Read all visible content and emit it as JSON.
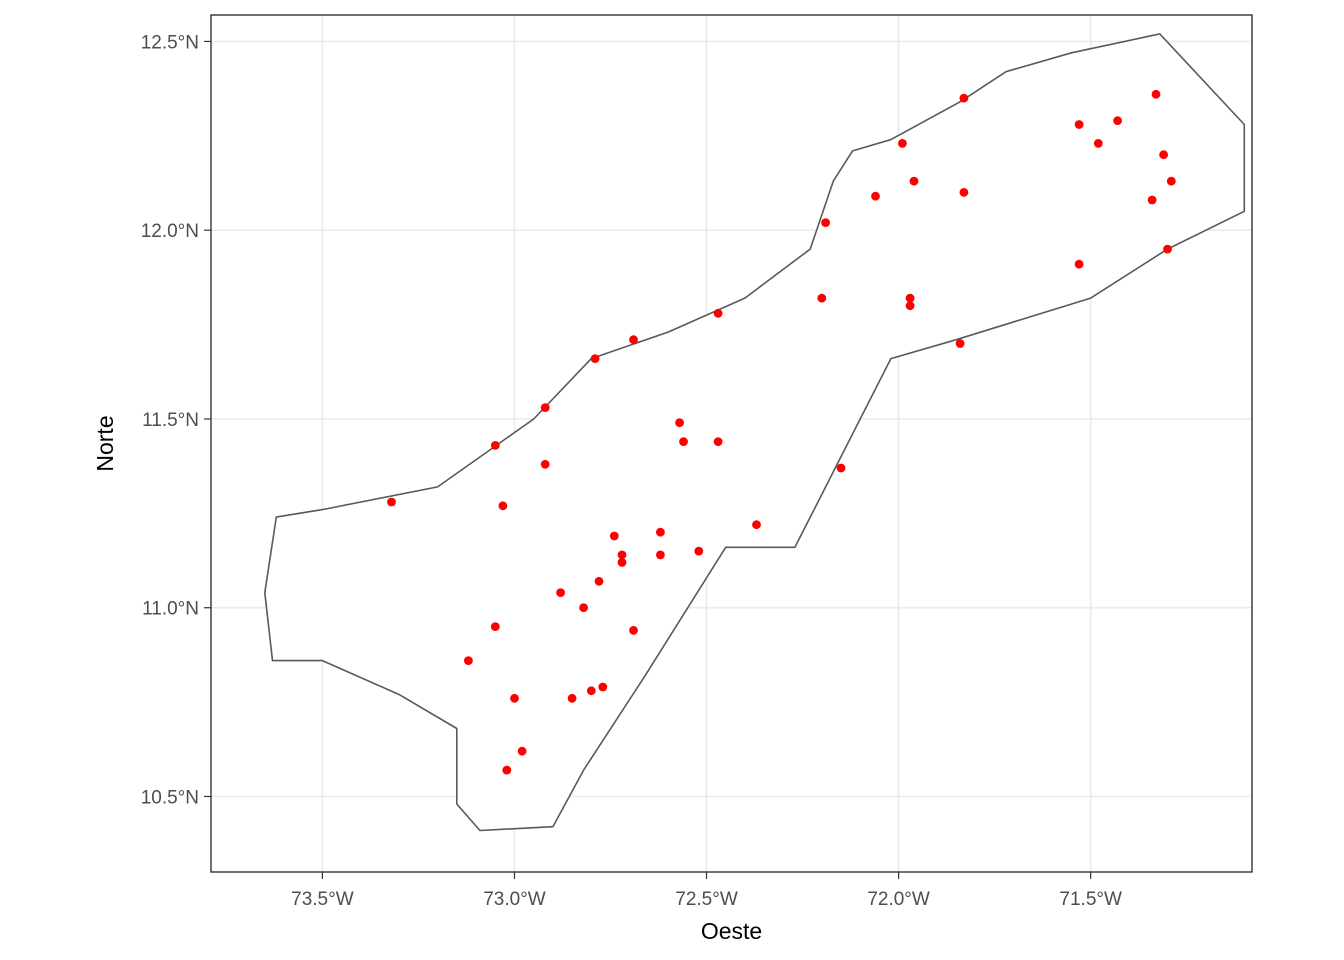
{
  "chart_data": {
    "type": "scatter",
    "kind": "map",
    "xlabel": "Oeste",
    "ylabel": "Norte",
    "x_ticks": [
      -73.5,
      -73.0,
      -72.5,
      -72.0,
      -71.5
    ],
    "x_tick_labels": [
      "73.5°W",
      "73.0°W",
      "72.5°W",
      "72.0°W",
      "71.5°W"
    ],
    "y_ticks": [
      10.5,
      11.0,
      11.5,
      12.0,
      12.5
    ],
    "y_tick_labels": [
      "10.5°N",
      "11.0°N",
      "11.5°N",
      "12.0°N",
      "12.5°N"
    ],
    "xlim": [
      -73.79,
      -71.08
    ],
    "ylim": [
      10.3,
      12.57
    ],
    "grid": true,
    "point_color": "#ff0000",
    "outline_color": "#595959",
    "outline": [
      [
        -71.32,
        12.52
      ],
      [
        -71.1,
        12.28
      ],
      [
        -71.1,
        12.05
      ],
      [
        -71.3,
        11.95
      ],
      [
        -71.5,
        11.82
      ],
      [
        -71.85,
        11.71
      ],
      [
        -72.02,
        11.66
      ],
      [
        -72.27,
        11.16
      ],
      [
        -72.45,
        11.16
      ],
      [
        -72.66,
        10.82
      ],
      [
        -72.82,
        10.57
      ],
      [
        -72.9,
        10.42
      ],
      [
        -73.09,
        10.41
      ],
      [
        -73.15,
        10.48
      ],
      [
        -73.15,
        10.68
      ],
      [
        -73.3,
        10.77
      ],
      [
        -73.5,
        10.86
      ],
      [
        -73.63,
        10.86
      ],
      [
        -73.65,
        11.04
      ],
      [
        -73.62,
        11.24
      ],
      [
        -73.5,
        11.26
      ],
      [
        -73.2,
        11.32
      ],
      [
        -72.95,
        11.5
      ],
      [
        -72.8,
        11.66
      ],
      [
        -72.6,
        11.73
      ],
      [
        -72.4,
        11.82
      ],
      [
        -72.23,
        11.95
      ],
      [
        -72.17,
        12.13
      ],
      [
        -72.12,
        12.21
      ],
      [
        -72.02,
        12.24
      ],
      [
        -71.93,
        12.29
      ],
      [
        -71.84,
        12.34
      ],
      [
        -71.72,
        12.42
      ],
      [
        -71.55,
        12.47
      ]
    ],
    "points": [
      [
        -71.83,
        12.35
      ],
      [
        -71.33,
        12.36
      ],
      [
        -71.43,
        12.29
      ],
      [
        -71.53,
        12.28
      ],
      [
        -71.48,
        12.23
      ],
      [
        -71.31,
        12.2
      ],
      [
        -71.29,
        12.13
      ],
      [
        -71.34,
        12.08
      ],
      [
        -71.3,
        11.95
      ],
      [
        -71.53,
        11.91
      ],
      [
        -71.99,
        12.23
      ],
      [
        -71.96,
        12.13
      ],
      [
        -71.83,
        12.1
      ],
      [
        -72.06,
        12.09
      ],
      [
        -72.19,
        12.02
      ],
      [
        -72.2,
        11.82
      ],
      [
        -71.97,
        11.82
      ],
      [
        -71.97,
        11.8
      ],
      [
        -71.84,
        11.7
      ],
      [
        -72.47,
        11.78
      ],
      [
        -72.69,
        11.71
      ],
      [
        -72.79,
        11.66
      ],
      [
        -72.92,
        11.53
      ],
      [
        -73.05,
        11.43
      ],
      [
        -72.92,
        11.38
      ],
      [
        -72.57,
        11.49
      ],
      [
        -72.56,
        11.44
      ],
      [
        -72.47,
        11.44
      ],
      [
        -72.15,
        11.37
      ],
      [
        -73.32,
        11.28
      ],
      [
        -73.03,
        11.27
      ],
      [
        -72.37,
        11.22
      ],
      [
        -72.62,
        11.2
      ],
      [
        -72.74,
        11.19
      ],
      [
        -72.72,
        11.14
      ],
      [
        -72.62,
        11.14
      ],
      [
        -72.52,
        11.15
      ],
      [
        -72.72,
        11.12
      ],
      [
        -72.78,
        11.07
      ],
      [
        -72.88,
        11.04
      ],
      [
        -72.82,
        11.0
      ],
      [
        -73.05,
        10.95
      ],
      [
        -72.69,
        10.94
      ],
      [
        -73.12,
        10.86
      ],
      [
        -72.77,
        10.79
      ],
      [
        -72.8,
        10.78
      ],
      [
        -72.85,
        10.76
      ],
      [
        -73.0,
        10.76
      ],
      [
        -72.98,
        10.62
      ],
      [
        -73.02,
        10.57
      ]
    ]
  }
}
